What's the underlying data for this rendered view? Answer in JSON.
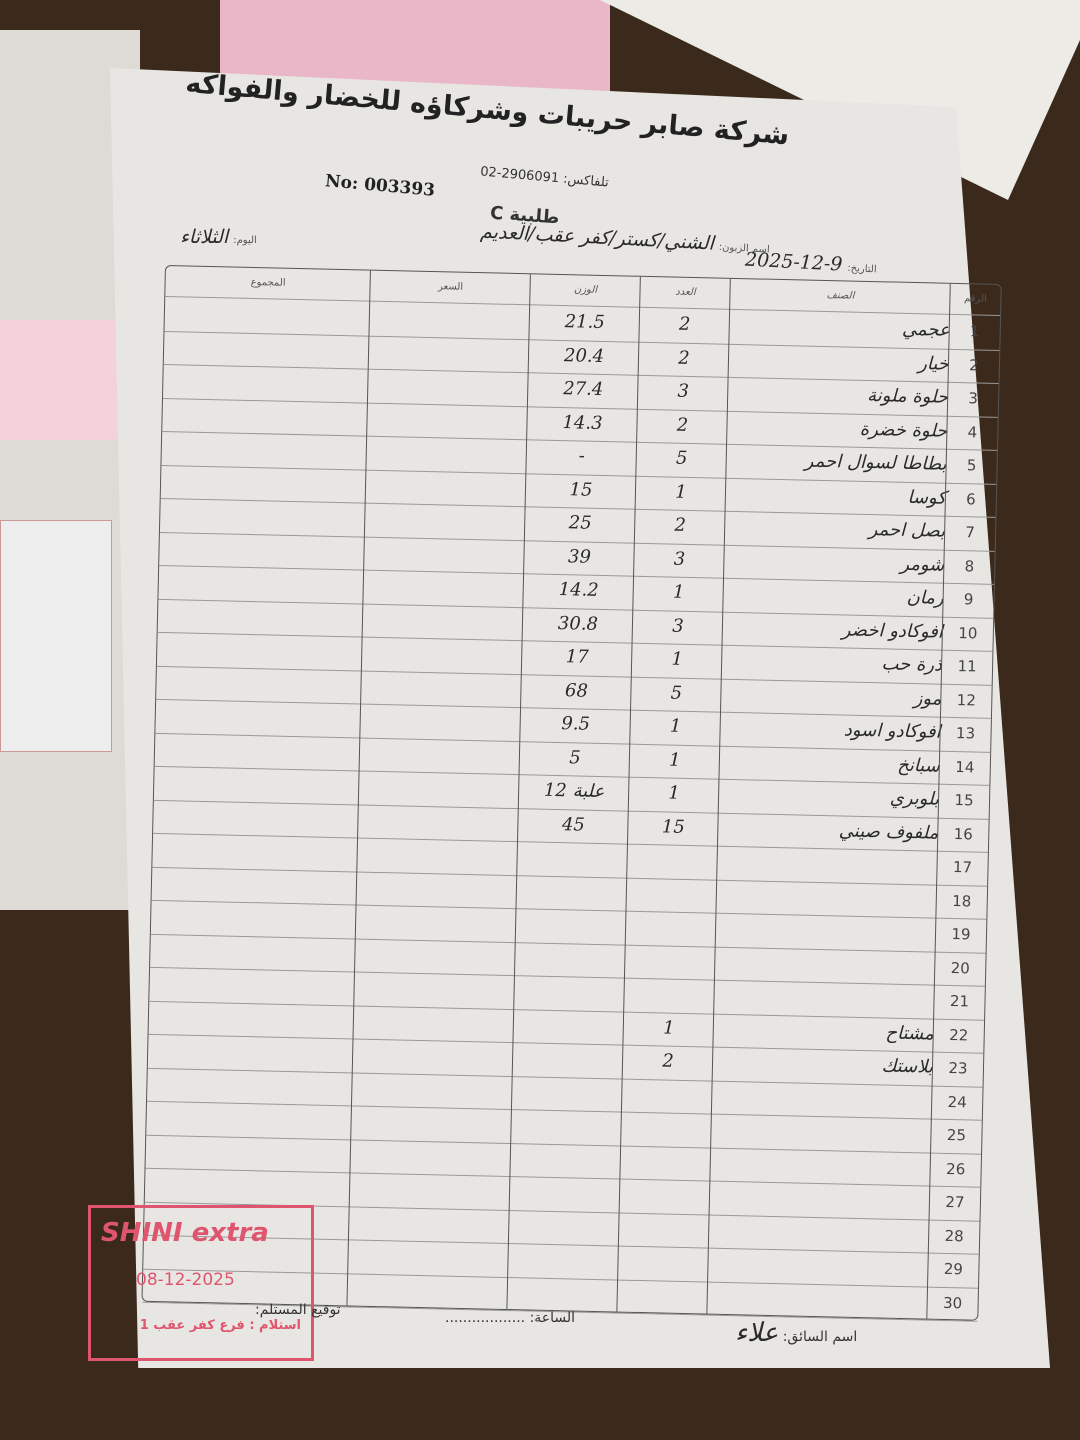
{
  "header": {
    "company": "شركة صابر حريبات وشركاؤه للخضار والفواكه",
    "fax_label": "تلفاكس:",
    "fax": "02-2906091",
    "number": "No: 003393",
    "order_label": "طلبية",
    "order_letter": "C",
    "customer_label": "اسم الزبون:",
    "customer": "الشني/كستر/كفر عقب/العديم",
    "day_label": "اليوم:",
    "day": "الثلاثاء",
    "date_label": "التاريخ:",
    "date": "2025-12-9"
  },
  "table": {
    "columns": {
      "number": "الرقم",
      "item": "الصنف",
      "count": "العدد",
      "weight": "الوزن",
      "price": "السعر",
      "total": "المجموع"
    },
    "rows": [
      {
        "n": "1",
        "item": "عجمي",
        "count": "2",
        "weight": "21.5"
      },
      {
        "n": "2",
        "item": "خيار",
        "count": "2",
        "weight": "20.4"
      },
      {
        "n": "3",
        "item": "حلوة ملونة",
        "count": "3",
        "weight": "27.4"
      },
      {
        "n": "4",
        "item": "حلوة خضرة",
        "count": "2",
        "weight": "14.3"
      },
      {
        "n": "5",
        "item": "بطاطا لسوال احمر",
        "count": "5",
        "weight": "-"
      },
      {
        "n": "6",
        "item": "كوسا",
        "count": "1",
        "weight": "15"
      },
      {
        "n": "7",
        "item": "بصل احمر",
        "count": "2",
        "weight": "25"
      },
      {
        "n": "8",
        "item": "شومر",
        "count": "3",
        "weight": "39"
      },
      {
        "n": "9",
        "item": "رمان",
        "count": "1",
        "weight": "14.2"
      },
      {
        "n": "10",
        "item": "افوكادو اخضر",
        "count": "3",
        "weight": "30.8"
      },
      {
        "n": "11",
        "item": "ذرة حب",
        "count": "1",
        "weight": "17"
      },
      {
        "n": "12",
        "item": "موز",
        "count": "5",
        "weight": "68"
      },
      {
        "n": "13",
        "item": "افوكادو اسود",
        "count": "1",
        "weight": "9.5"
      },
      {
        "n": "14",
        "item": "سبانخ",
        "count": "1",
        "weight": "5"
      },
      {
        "n": "15",
        "item": "بلوبري",
        "count": "1",
        "weight": "12 علبة"
      },
      {
        "n": "16",
        "item": "ملفوف صيني",
        "count": "15",
        "weight": "45"
      },
      {
        "n": "17"
      },
      {
        "n": "18"
      },
      {
        "n": "19"
      },
      {
        "n": "20"
      },
      {
        "n": "21"
      },
      {
        "n": "22",
        "item": "مشتاح",
        "count": "1"
      },
      {
        "n": "23",
        "item": "بلاستك",
        "count": "2"
      },
      {
        "n": "24"
      },
      {
        "n": "25"
      },
      {
        "n": "26"
      },
      {
        "n": "27"
      },
      {
        "n": "28"
      },
      {
        "n": "29"
      },
      {
        "n": "30"
      }
    ]
  },
  "footer": {
    "driver_label": "اسم السائق:",
    "driver": "علاء",
    "time_label": "الساعة:",
    "receiver_label": "توقيع المستلم:"
  },
  "stamp": {
    "brand": "SHINI extra",
    "date": "08-12-2025",
    "branch": "استلام : فرع كفر عقب 1",
    "color": "#e0556e"
  }
}
